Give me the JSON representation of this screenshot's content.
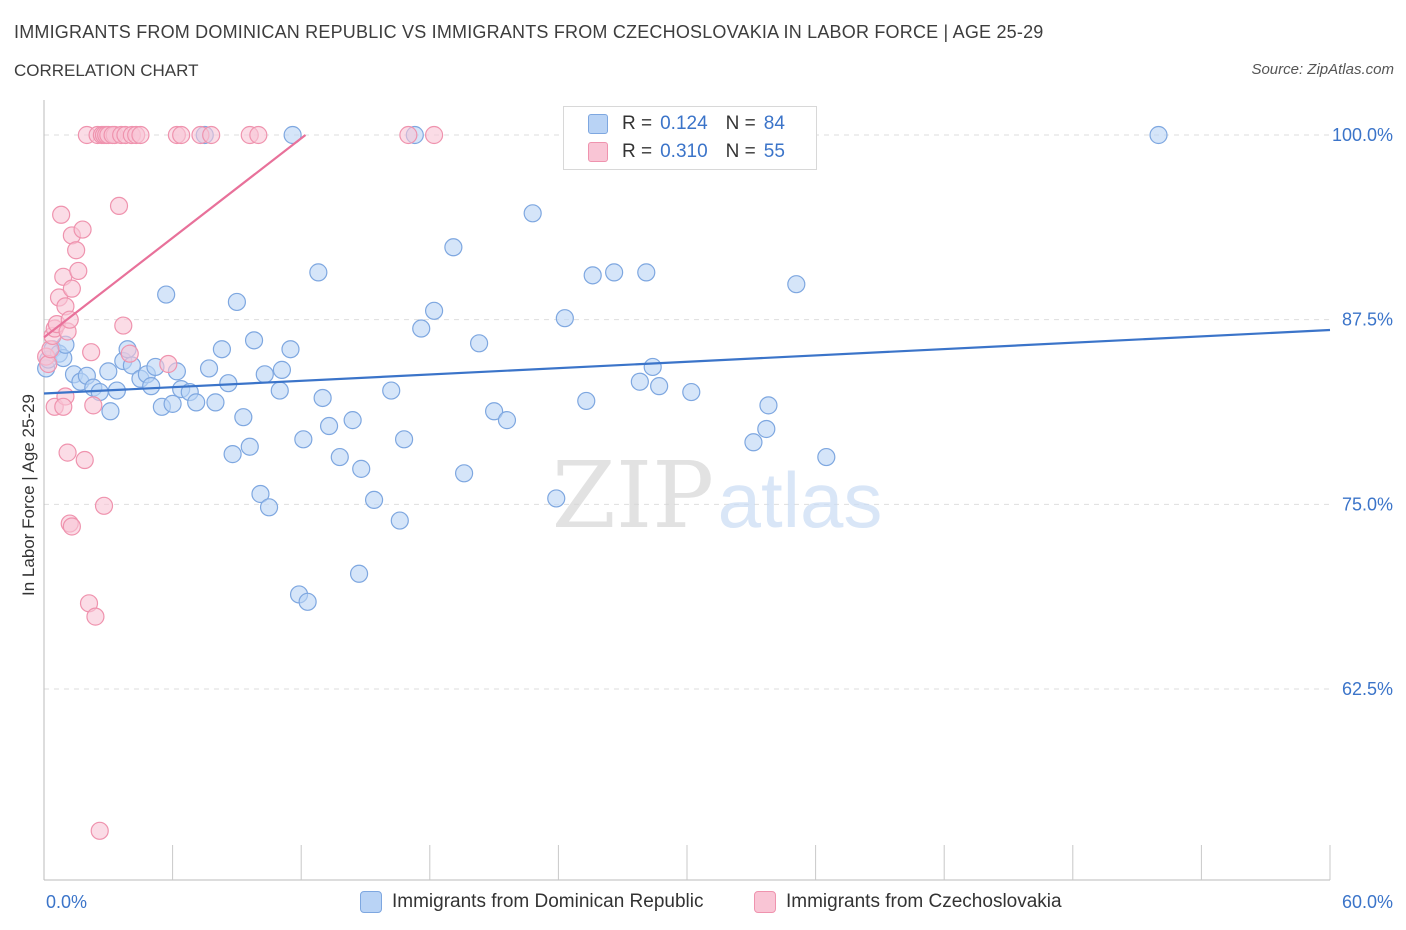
{
  "header": {
    "title": "IMMIGRANTS FROM DOMINICAN REPUBLIC VS IMMIGRANTS FROM CZECHOSLOVAKIA IN LABOR FORCE | AGE 25-29",
    "subtitle": "CORRELATION CHART",
    "source": "Source: ZipAtlas.com"
  },
  "watermark": {
    "zip": "ZIP",
    "atlas": "atlas"
  },
  "legend": {
    "r_label": "R =",
    "n_label": "N =",
    "series": [
      {
        "name": "Immigrants from Dominican Republic",
        "r": "0.124",
        "n": "84",
        "fill": "#b9d3f5",
        "stroke": "#7ea7e0"
      },
      {
        "name": "Immigrants from Czechoslovakia",
        "r": "0.310",
        "n": "55",
        "fill": "#f9c5d5",
        "stroke": "#ef93ae"
      }
    ]
  },
  "chart_data": {
    "type": "scatter",
    "title": "IMMIGRANTS FROM DOMINICAN REPUBLIC VS IMMIGRANTS FROM CZECHOSLOVAKIA IN LABOR FORCE | AGE 25-29",
    "xlabel": "",
    "ylabel": "In Labor Force | Age 25-29",
    "xlim": [
      0,
      60
    ],
    "ylim": [
      50,
      101.5
    ],
    "x_tick_labels": [
      {
        "value": 0,
        "label": "0.0%"
      },
      {
        "value": 60,
        "label": "60.0%"
      }
    ],
    "y_tick_labels": [
      {
        "value": 100,
        "label": "100.0%"
      },
      {
        "value": 87.5,
        "label": "87.5%"
      },
      {
        "value": 75,
        "label": "75.0%"
      },
      {
        "value": 62.5,
        "label": "62.5%"
      }
    ],
    "x_minor_ticks": [
      6,
      12,
      18,
      24,
      30,
      36,
      42,
      48,
      54
    ],
    "grid": "horizontal dashed",
    "legend_position": "top-center",
    "series": [
      {
        "name": "Immigrants from Dominican Republic",
        "color": "#3b74c9",
        "trend": {
          "x0": 0,
          "y0": 82.5,
          "x1": 60,
          "y1": 86.8
        },
        "points": [
          [
            0.1,
            84.2
          ],
          [
            0.2,
            84.8
          ],
          [
            0.4,
            85.5
          ],
          [
            0.7,
            85.2
          ],
          [
            0.9,
            84.9
          ],
          [
            1.0,
            85.8
          ],
          [
            1.4,
            83.8
          ],
          [
            1.7,
            83.3
          ],
          [
            2.0,
            83.7
          ],
          [
            2.3,
            82.9
          ],
          [
            2.6,
            82.6
          ],
          [
            3.0,
            84.0
          ],
          [
            3.1,
            81.3
          ],
          [
            3.4,
            82.7
          ],
          [
            3.7,
            84.7
          ],
          [
            3.9,
            85.5
          ],
          [
            4.1,
            84.4
          ],
          [
            4.5,
            83.5
          ],
          [
            4.8,
            83.8
          ],
          [
            5.0,
            83.0
          ],
          [
            5.2,
            84.3
          ],
          [
            5.5,
            81.6
          ],
          [
            5.7,
            89.2
          ],
          [
            6.0,
            81.8
          ],
          [
            6.2,
            84.0
          ],
          [
            6.4,
            82.8
          ],
          [
            6.8,
            82.6
          ],
          [
            7.1,
            81.9
          ],
          [
            7.7,
            84.2
          ],
          [
            8.0,
            81.9
          ],
          [
            8.3,
            85.5
          ],
          [
            8.6,
            83.2
          ],
          [
            8.8,
            78.4
          ],
          [
            9.0,
            88.7
          ],
          [
            9.3,
            80.9
          ],
          [
            9.6,
            78.9
          ],
          [
            9.8,
            86.1
          ],
          [
            10.1,
            75.7
          ],
          [
            10.3,
            83.8
          ],
          [
            10.5,
            74.8
          ],
          [
            11.0,
            82.7
          ],
          [
            11.1,
            84.1
          ],
          [
            11.5,
            85.5
          ],
          [
            11.6,
            100.0
          ],
          [
            11.9,
            68.9
          ],
          [
            12.1,
            79.4
          ],
          [
            12.3,
            68.4
          ],
          [
            12.8,
            90.7
          ],
          [
            13.0,
            82.2
          ],
          [
            13.3,
            80.3
          ],
          [
            13.8,
            78.2
          ],
          [
            14.4,
            80.7
          ],
          [
            14.7,
            70.3
          ],
          [
            14.8,
            77.4
          ],
          [
            15.4,
            75.3
          ],
          [
            16.2,
            82.7
          ],
          [
            16.6,
            73.9
          ],
          [
            16.8,
            79.4
          ],
          [
            17.3,
            100.0
          ],
          [
            17.6,
            86.9
          ],
          [
            18.2,
            88.1
          ],
          [
            19.1,
            92.4
          ],
          [
            19.6,
            77.1
          ],
          [
            20.3,
            85.9
          ],
          [
            21.0,
            81.3
          ],
          [
            21.6,
            80.7
          ],
          [
            22.8,
            94.7
          ],
          [
            23.9,
            75.4
          ],
          [
            24.3,
            87.6
          ],
          [
            25.3,
            82.0
          ],
          [
            25.6,
            90.5
          ],
          [
            26.6,
            90.7
          ],
          [
            27.8,
            83.3
          ],
          [
            28.1,
            90.7
          ],
          [
            28.4,
            84.3
          ],
          [
            28.7,
            83.0
          ],
          [
            30.2,
            82.6
          ],
          [
            33.1,
            79.2
          ],
          [
            33.7,
            80.1
          ],
          [
            33.8,
            81.7
          ],
          [
            35.1,
            89.9
          ],
          [
            36.5,
            78.2
          ],
          [
            52.0,
            100.0
          ],
          [
            7.5,
            100.0
          ]
        ]
      },
      {
        "name": "Immigrants from Czechoslovakia",
        "color": "#e8719a",
        "trend": {
          "x0": 0,
          "y0": 86.3,
          "x1": 12.2,
          "y1": 100.0
        },
        "points": [
          [
            0.1,
            85.0
          ],
          [
            0.2,
            84.5
          ],
          [
            0.3,
            85.5
          ],
          [
            0.4,
            86.4
          ],
          [
            0.5,
            86.9
          ],
          [
            0.6,
            87.2
          ],
          [
            0.5,
            81.6
          ],
          [
            0.7,
            89.0
          ],
          [
            0.8,
            94.6
          ],
          [
            0.9,
            90.4
          ],
          [
            1.0,
            88.4
          ],
          [
            1.1,
            86.7
          ],
          [
            1.0,
            82.3
          ],
          [
            0.9,
            81.6
          ],
          [
            1.1,
            78.5
          ],
          [
            1.2,
            87.5
          ],
          [
            1.3,
            93.2
          ],
          [
            1.3,
            89.6
          ],
          [
            1.2,
            73.7
          ],
          [
            1.3,
            73.5
          ],
          [
            1.5,
            92.2
          ],
          [
            1.6,
            90.8
          ],
          [
            1.8,
            93.6
          ],
          [
            1.9,
            78.0
          ],
          [
            2.0,
            100.0
          ],
          [
            2.1,
            68.3
          ],
          [
            2.2,
            85.3
          ],
          [
            2.3,
            81.7
          ],
          [
            2.4,
            67.4
          ],
          [
            2.5,
            100.0
          ],
          [
            2.6,
            52.9
          ],
          [
            2.7,
            100.0
          ],
          [
            2.8,
            100.0
          ],
          [
            2.9,
            100.0
          ],
          [
            3.0,
            100.0
          ],
          [
            2.8,
            74.9
          ],
          [
            3.3,
            100.0
          ],
          [
            3.2,
            100.0
          ],
          [
            3.5,
            95.2
          ],
          [
            3.6,
            100.0
          ],
          [
            3.7,
            87.1
          ],
          [
            3.8,
            100.0
          ],
          [
            4.0,
            85.2
          ],
          [
            4.1,
            100.0
          ],
          [
            4.3,
            100.0
          ],
          [
            4.5,
            100.0
          ],
          [
            5.8,
            84.5
          ],
          [
            6.2,
            100.0
          ],
          [
            6.4,
            100.0
          ],
          [
            7.3,
            100.0
          ],
          [
            7.8,
            100.0
          ],
          [
            9.6,
            100.0
          ],
          [
            10.0,
            100.0
          ],
          [
            18.2,
            100.0
          ],
          [
            17.0,
            100.0
          ]
        ]
      }
    ]
  }
}
